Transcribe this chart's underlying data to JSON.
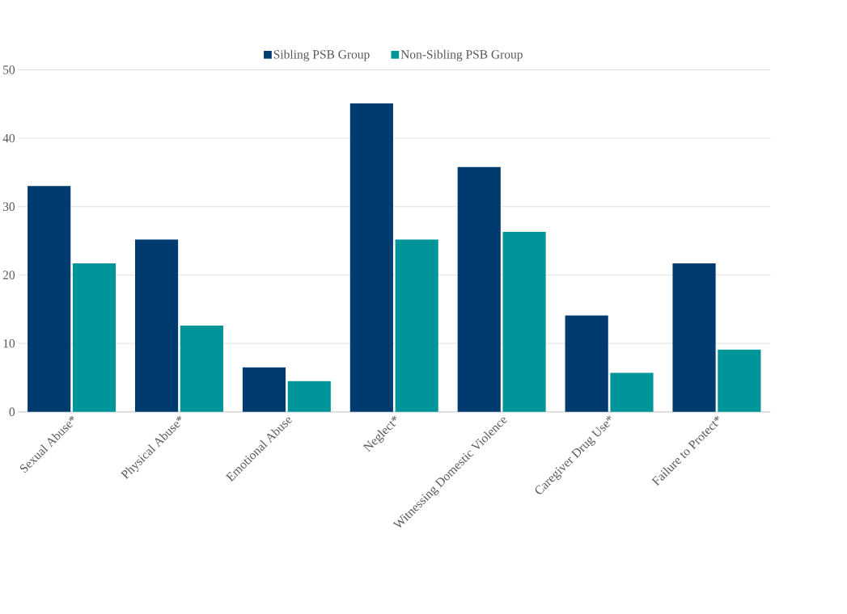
{
  "chart_data": {
    "type": "bar",
    "categories": [
      "Sexual Abuse*",
      "Physical Abuse*",
      "Emotional Abuse",
      "Neglect*",
      "Witnessing Domestic Violence",
      "Caregiver Drug Use*",
      "Failure to Protect*"
    ],
    "series": [
      {
        "name": "Sibling PSB Group",
        "color": "#003b6f",
        "values": [
          33,
          25.2,
          6.5,
          45.1,
          35.8,
          14.1,
          21.7
        ]
      },
      {
        "name": "Non-Sibling PSB Group",
        "color": "#009699",
        "values": [
          21.7,
          12.6,
          4.5,
          25.2,
          26.3,
          5.7,
          9.1
        ]
      }
    ],
    "ylim": [
      0,
      50
    ],
    "yticks": [
      0,
      10,
      20,
      30,
      40,
      50
    ],
    "grid": "y",
    "legend": "top"
  }
}
